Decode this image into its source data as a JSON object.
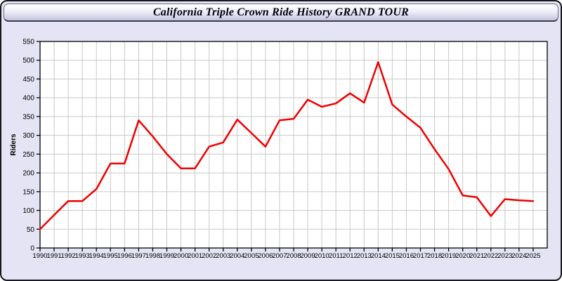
{
  "title": "California Triple Crown Ride History GRAND TOUR",
  "colors": {
    "frame_border": "#17171f",
    "page_bg": "#e4e4f4",
    "titlebar_top": "#ffffff",
    "titlebar_mid": "#ededf8",
    "titlebar_bottom": "#c4c4de",
    "plot_bg": "#ffffff",
    "grid": "#c8c8c8",
    "axis": "#000000",
    "tick_label": "#000000",
    "line": "#ee0000"
  },
  "chart_data": {
    "type": "line",
    "title": "California Triple Crown Ride History GRAND TOUR",
    "xlabel": "",
    "ylabel": "Riders",
    "ylim": [
      0,
      550
    ],
    "ytick_step": 50,
    "grid": true,
    "legend": false,
    "x": [
      1990,
      1991,
      1992,
      1993,
      1994,
      1995,
      1996,
      1997,
      1998,
      1999,
      2000,
      2001,
      2002,
      2003,
      2004,
      2005,
      2006,
      2007,
      2008,
      2009,
      2010,
      2011,
      2012,
      2013,
      2014,
      2015,
      2016,
      2017,
      2018,
      2019,
      2020,
      2021,
      2022,
      2023,
      2024,
      2025
    ],
    "series": [
      {
        "name": "Riders",
        "color": "#ee0000",
        "values": [
          50,
          88,
          125,
          125,
          157,
          225,
          225,
          340,
          297,
          250,
          212,
          212,
          270,
          281,
          342,
          306,
          270,
          340,
          344,
          395,
          376,
          385,
          412,
          387,
          495,
          382,
          350,
          320,
          263,
          210,
          140,
          135,
          85,
          130,
          127,
          125
        ]
      }
    ]
  }
}
